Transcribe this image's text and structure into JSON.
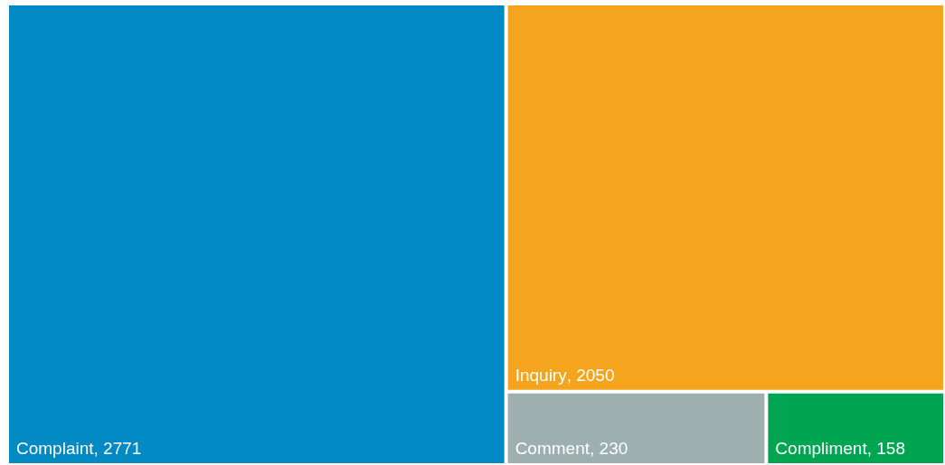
{
  "chart_data": {
    "type": "other",
    "categories": [
      "Complaint",
      "Inquiry",
      "Comment",
      "Compliment"
    ],
    "values": [
      2771,
      2050,
      230,
      158
    ],
    "colors": [
      "#0089c2",
      "#f5a51d",
      "#9eafb0",
      "#00a551"
    ],
    "value_labels": [
      ", 2771",
      ", 2050",
      ", 230",
      ", 158"
    ]
  }
}
